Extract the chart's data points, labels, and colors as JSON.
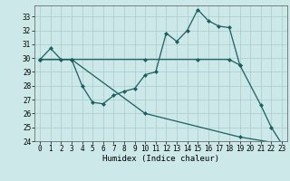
{
  "line_a_x": [
    0,
    1,
    2,
    3,
    4,
    5,
    6,
    7,
    8,
    9,
    10,
    11,
    12,
    13,
    14,
    15,
    16,
    17,
    18,
    19,
    21,
    22,
    23
  ],
  "line_a_y": [
    29.9,
    30.7,
    29.9,
    29.9,
    28.0,
    26.8,
    26.7,
    27.3,
    27.6,
    27.8,
    28.8,
    29.0,
    31.8,
    31.2,
    32.0,
    33.5,
    32.7,
    32.3,
    32.2,
    29.5,
    26.6,
    25.0,
    23.8
  ],
  "line_b_x": [
    0,
    3,
    10,
    15,
    18,
    19
  ],
  "line_b_y": [
    29.9,
    29.9,
    29.9,
    29.9,
    29.9,
    29.5
  ],
  "line_c_x": [
    0,
    3,
    10,
    19,
    23
  ],
  "line_c_y": [
    29.9,
    29.9,
    26.0,
    24.3,
    23.8
  ],
  "bg_color": "#cce8e8",
  "line_color": "#1a6060",
  "grid_color": "#aacccc",
  "xlabel": "Humidex (Indice chaleur)",
  "ylim": [
    24,
    33.8
  ],
  "xlim": [
    -0.5,
    23.5
  ],
  "yticks": [
    24,
    25,
    26,
    27,
    28,
    29,
    30,
    31,
    32,
    33
  ],
  "xticks": [
    0,
    1,
    2,
    3,
    4,
    5,
    6,
    7,
    8,
    9,
    10,
    11,
    12,
    13,
    14,
    15,
    16,
    17,
    18,
    19,
    20,
    21,
    22,
    23
  ]
}
